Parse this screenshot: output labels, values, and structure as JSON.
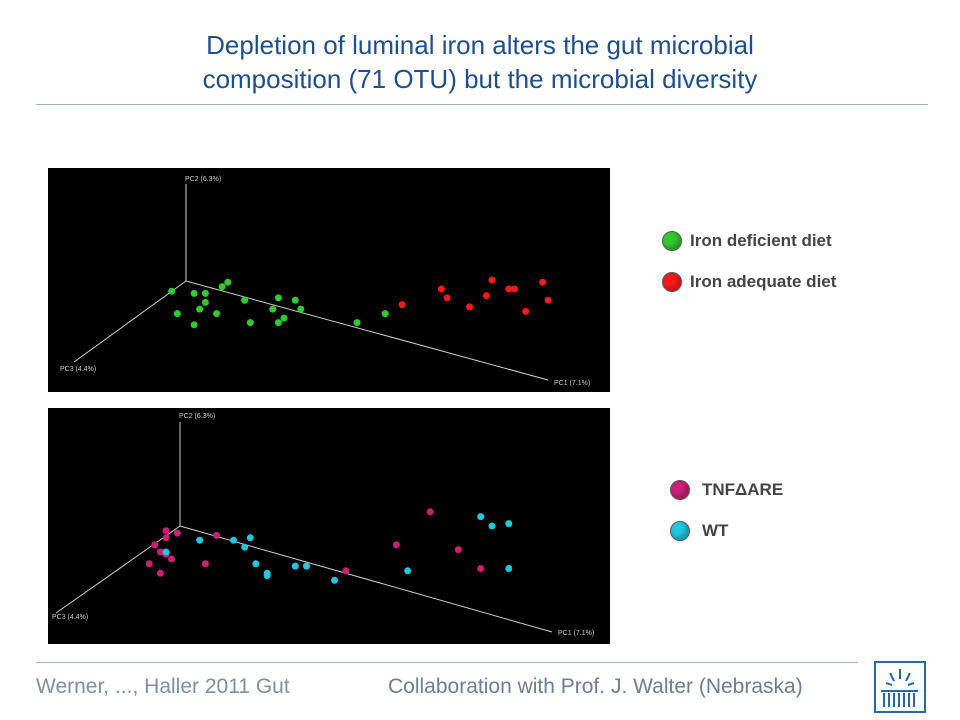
{
  "slide": {
    "title_line1": "Depletion of luminal iron alters the gut microbial",
    "title_line2": "composition (71 OTU) but the microbial diversity",
    "footer_left": "Werner, ..., Haller 2011 Gut",
    "footer_right": "Collaboration with Prof. J. Walter (Nebraska)",
    "logo_icon": "institute-logo-icon"
  },
  "colors": {
    "iron_deficient": "#2ecc2e",
    "iron_adequate": "#ff1a1a",
    "tnf": "#cc1f78",
    "wt": "#1fc8e0",
    "title": "#1f4e8c",
    "axis": "#cfcfcf"
  },
  "legend_top": [
    {
      "label": "Iron deficient diet",
      "color": "#2ecc2e"
    },
    {
      "label": "Iron adequate diet",
      "color": "#ff1a1a"
    }
  ],
  "legend_bottom": [
    {
      "label": "TNFΔARE",
      "color": "#cc1f78"
    },
    {
      "label": "WT",
      "color": "#1fc8e0"
    }
  ],
  "chart_data": [
    {
      "type": "scatter",
      "title": "",
      "axis_labels": {
        "pc1": "PC1 (7.1%)",
        "pc2": "PC2 (6.3%)",
        "pc3": "PC3 (4.4%)"
      },
      "series": [
        {
          "name": "Iron deficient diet",
          "color": "#2ecc2e",
          "points": [
            [
              0.22,
              0.55
            ],
            [
              0.26,
              0.56
            ],
            [
              0.28,
              0.6
            ],
            [
              0.28,
              0.56
            ],
            [
              0.27,
              0.63
            ],
            [
              0.26,
              0.7
            ],
            [
              0.23,
              0.65
            ],
            [
              0.3,
              0.65
            ],
            [
              0.35,
              0.59
            ],
            [
              0.31,
              0.53
            ],
            [
              0.35,
              0.59
            ],
            [
              0.44,
              0.59
            ],
            [
              0.41,
              0.58
            ],
            [
              0.4,
              0.63
            ],
            [
              0.45,
              0.63
            ],
            [
              0.36,
              0.69
            ],
            [
              0.41,
              0.69
            ],
            [
              0.42,
              0.67
            ],
            [
              0.55,
              0.69
            ],
            [
              0.6,
              0.65
            ],
            [
              0.32,
              0.51
            ]
          ]
        },
        {
          "name": "Iron adequate diet",
          "color": "#ff1a1a",
          "points": [
            [
              0.63,
              0.61
            ],
            [
              0.7,
              0.54
            ],
            [
              0.71,
              0.58
            ],
            [
              0.78,
              0.57
            ],
            [
              0.79,
              0.5
            ],
            [
              0.82,
              0.54
            ],
            [
              0.85,
              0.64
            ],
            [
              0.88,
              0.51
            ],
            [
              0.89,
              0.59
            ],
            [
              0.75,
              0.62
            ],
            [
              0.83,
              0.54
            ]
          ]
        }
      ]
    },
    {
      "type": "scatter",
      "title": "",
      "axis_labels": {
        "pc1": "PC1 (7.1%)",
        "pc2": "PC2 (6.3%)",
        "pc3": "PC3 (4.4%)"
      },
      "series": [
        {
          "name": "TNFΔARE",
          "color": "#cc1f78",
          "points": [
            [
              0.21,
              0.52
            ],
            [
              0.23,
              0.53
            ],
            [
              0.21,
              0.55
            ],
            [
              0.19,
              0.58
            ],
            [
              0.2,
              0.61
            ],
            [
              0.21,
              0.62
            ],
            [
              0.22,
              0.64
            ],
            [
              0.18,
              0.66
            ],
            [
              0.2,
              0.7
            ],
            [
              0.28,
              0.66
            ],
            [
              0.3,
              0.54
            ],
            [
              0.68,
              0.44
            ],
            [
              0.62,
              0.58
            ],
            [
              0.73,
              0.6
            ],
            [
              0.77,
              0.68
            ],
            [
              0.53,
              0.69
            ]
          ]
        },
        {
          "name": "WT",
          "color": "#1fc8e0",
          "points": [
            [
              0.21,
              0.61
            ],
            [
              0.27,
              0.56
            ],
            [
              0.33,
              0.56
            ],
            [
              0.36,
              0.55
            ],
            [
              0.37,
              0.66
            ],
            [
              0.39,
              0.7
            ],
            [
              0.39,
              0.71
            ],
            [
              0.44,
              0.67
            ],
            [
              0.46,
              0.67
            ],
            [
              0.51,
              0.73
            ],
            [
              0.64,
              0.69
            ],
            [
              0.77,
              0.46
            ],
            [
              0.79,
              0.5
            ],
            [
              0.82,
              0.49
            ],
            [
              0.82,
              0.68
            ],
            [
              0.35,
              0.59
            ]
          ]
        }
      ]
    }
  ]
}
